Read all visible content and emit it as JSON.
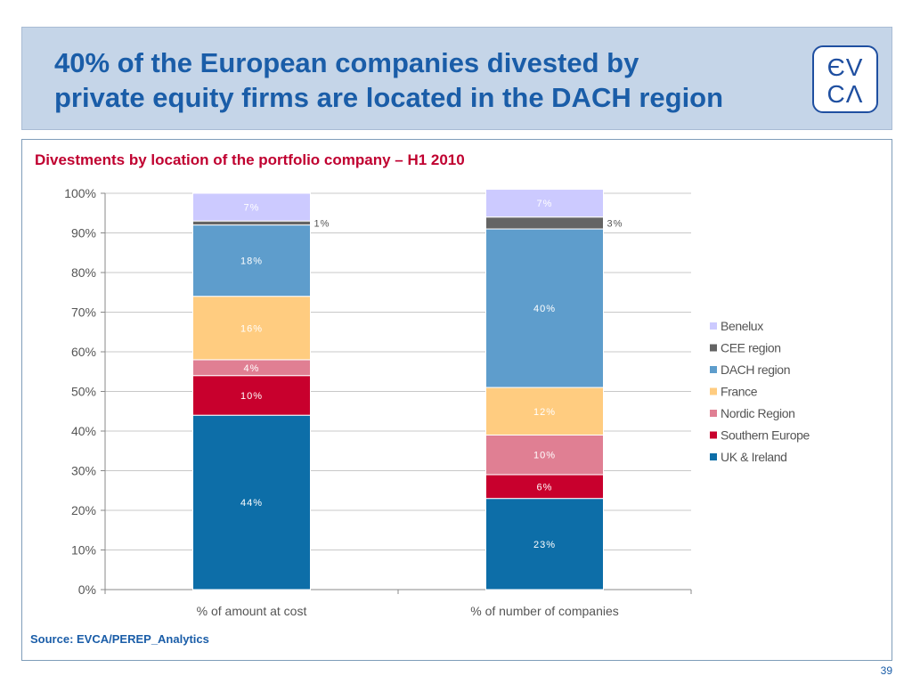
{
  "slide": {
    "title": "40% of the European companies divested by\nprivate equity firms are located in the DACH region",
    "logo_text": "EV\nCA",
    "subtitle": "Divestments by location of the portfolio company – H1 2010",
    "source": "Source: EVCA/PEREP_Analytics",
    "page_number": "39"
  },
  "colors": {
    "title": "#1a5da8",
    "subtitle": "#c00030",
    "header_bg": "#c5d5e8"
  },
  "chart_data": {
    "type": "bar",
    "stacked": true,
    "title": "",
    "xlabel": "",
    "ylabel": "",
    "ylim": [
      0,
      100
    ],
    "yticks": [
      "0%",
      "10%",
      "20%",
      "30%",
      "40%",
      "50%",
      "60%",
      "70%",
      "80%",
      "90%",
      "100%"
    ],
    "categories": [
      "% of amount at cost",
      "% of number of companies"
    ],
    "legend_position": "right",
    "grid": true,
    "series": [
      {
        "name": "UK & Ireland",
        "color": "#0d6ea8",
        "values": [
          44,
          23
        ],
        "labels": [
          "44%",
          "23%"
        ]
      },
      {
        "name": "Southern Europe",
        "color": "#c8002d",
        "values": [
          10,
          6
        ],
        "labels": [
          "10%",
          "6%"
        ]
      },
      {
        "name": "Nordic Region",
        "color": "#e07f93",
        "values": [
          4,
          10
        ],
        "labels": [
          "4%",
          "10%"
        ]
      },
      {
        "name": "France",
        "color": "#ffcc80",
        "values": [
          16,
          12
        ],
        "labels": [
          "16%",
          "12%"
        ]
      },
      {
        "name": "DACH region",
        "color": "#5e9dcc",
        "values": [
          18,
          40
        ],
        "labels": [
          "18%",
          "40%"
        ]
      },
      {
        "name": "CEE region",
        "color": "#646464",
        "values": [
          1,
          3
        ],
        "labels": [
          "1%",
          "3%"
        ]
      },
      {
        "name": "Benelux",
        "color": "#cccaff",
        "values": [
          7,
          7
        ],
        "labels": [
          "7%",
          "7%"
        ]
      }
    ]
  }
}
